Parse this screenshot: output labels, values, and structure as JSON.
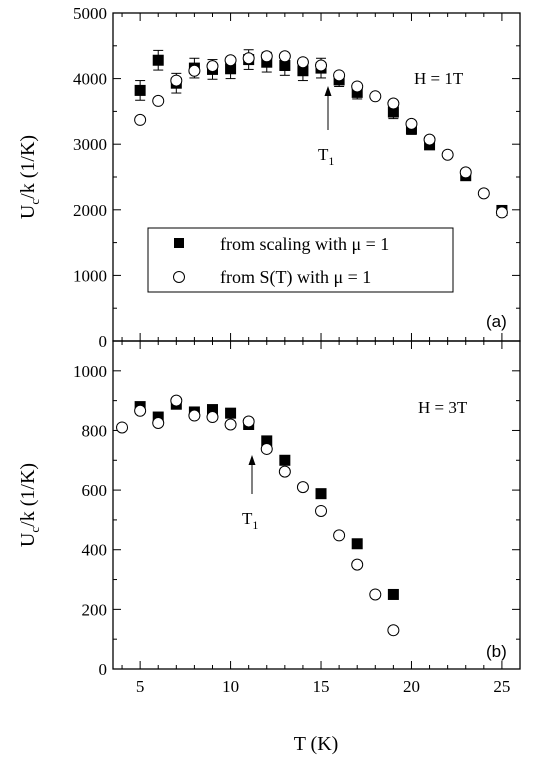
{
  "chart_data": [
    {
      "panel": "(a)",
      "type": "scatter",
      "annotation": "H = 1T",
      "arrow_label": "T",
      "arrow_label_sub": "1",
      "arrow_at_x": 15,
      "xlabel": "",
      "ylabel_main": "U",
      "ylabel_sub": "c",
      "ylabel_rest": "/k (1/K)",
      "xlim": [
        3.5,
        26
      ],
      "ylim": [
        0,
        5000
      ],
      "yticks": [
        0,
        1000,
        2000,
        3000,
        4000,
        5000
      ],
      "legend": {
        "placement": "center-left",
        "entries": [
          {
            "marker": "filled-square",
            "label": "from scaling  with μ = 1"
          },
          {
            "marker": "open-circle",
            "label": "from S(T)  with  μ = 1"
          }
        ]
      },
      "series": [
        {
          "marker": "filled-square",
          "error_bars": true,
          "x": [
            5,
            6,
            7,
            8,
            9,
            10,
            11,
            12,
            13,
            14,
            15,
            16,
            17,
            19,
            20,
            21,
            23,
            25
          ],
          "y": [
            3820,
            4280,
            3930,
            4160,
            4140,
            4150,
            4290,
            4250,
            4200,
            4120,
            4160,
            3980,
            3790,
            3490,
            3230,
            2990,
            2520,
            1990
          ],
          "err": [
            150,
            150,
            150,
            150,
            150,
            150,
            150,
            150,
            150,
            150,
            150,
            100,
            100,
            100,
            80,
            60,
            60,
            60
          ]
        },
        {
          "marker": "open-circle",
          "x": [
            5,
            6,
            7,
            8,
            9,
            10,
            11,
            12,
            13,
            14,
            15,
            16,
            17,
            18,
            19,
            20,
            21,
            22,
            23,
            24,
            25
          ],
          "y": [
            3370,
            3660,
            3970,
            4120,
            4190,
            4280,
            4310,
            4340,
            4340,
            4250,
            4200,
            4050,
            3880,
            3730,
            3620,
            3310,
            3070,
            2840,
            2570,
            2250,
            1960
          ]
        }
      ]
    },
    {
      "panel": "(b)",
      "type": "scatter",
      "annotation": "H = 3T",
      "arrow_label": "T",
      "arrow_label_sub": "1",
      "arrow_at_x": 11.7,
      "xlabel": "T (K)",
      "ylabel_main": "U",
      "ylabel_sub": "c",
      "ylabel_rest": "/k (1/K)",
      "xlim": [
        3.5,
        26
      ],
      "ylim": [
        0,
        1100
      ],
      "xticks": [
        5,
        10,
        15,
        20,
        25
      ],
      "yticks": [
        0,
        200,
        400,
        600,
        800,
        1000
      ],
      "series": [
        {
          "marker": "filled-square",
          "x": [
            5,
            6,
            7,
            8,
            9,
            10,
            11,
            12,
            13,
            15,
            17,
            19
          ],
          "y": [
            880,
            845,
            888,
            862,
            870,
            858,
            820,
            765,
            700,
            588,
            420,
            250
          ]
        },
        {
          "marker": "open-circle",
          "x": [
            4,
            5,
            6,
            7,
            8,
            9,
            10,
            11,
            12,
            13,
            14,
            15,
            16,
            17,
            18,
            19
          ],
          "y": [
            810,
            866,
            825,
            900,
            850,
            845,
            820,
            830,
            738,
            662,
            610,
            530,
            448,
            350,
            250,
            130
          ]
        }
      ]
    }
  ]
}
